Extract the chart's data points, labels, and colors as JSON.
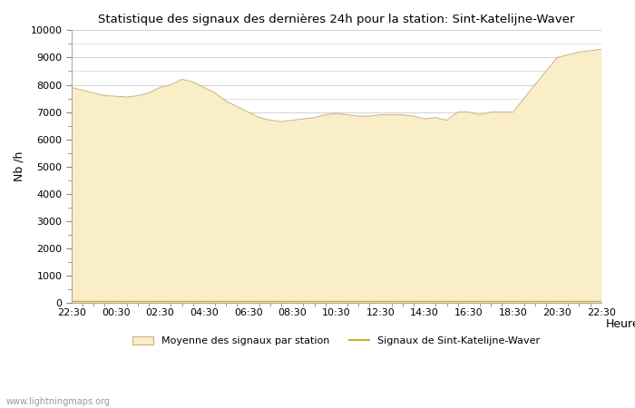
{
  "title": "Statistique des signaux des dernières 24h pour la station: Sint-Katelijne-Waver",
  "xlabel": "Heure",
  "ylabel": "Nb /h",
  "ylim": [
    0,
    10000
  ],
  "yticks": [
    0,
    1000,
    2000,
    3000,
    4000,
    5000,
    6000,
    7000,
    8000,
    9000,
    10000
  ],
  "x_labels": [
    "22:30",
    "00:30",
    "02:30",
    "04:30",
    "06:30",
    "08:30",
    "10:30",
    "12:30",
    "14:30",
    "16:30",
    "18:30",
    "20:30",
    "22:30"
  ],
  "fill_color": "#FAEEC8",
  "fill_edge_color": "#C8B080",
  "line_color": "#D4A832",
  "background_color": "#FFFFFF",
  "grid_color": "#CCCCCC",
  "watermark": "www.lightningmaps.org",
  "legend_fill_label": "Moyenne des signaux par station",
  "legend_line_label": "Signaux de Sint-Katelijne-Waver",
  "x_values": [
    0,
    1,
    2,
    3,
    4,
    5,
    6,
    7,
    8,
    9,
    10,
    11,
    12,
    13,
    14,
    15,
    16,
    17,
    18,
    19,
    20,
    21,
    22,
    23,
    24,
    25,
    26,
    27,
    28,
    29,
    30,
    31,
    32,
    33,
    34,
    35,
    36,
    37,
    38,
    39,
    40,
    41,
    42,
    43,
    44,
    45,
    46,
    47,
    48
  ],
  "avg_values": [
    7900,
    7800,
    7700,
    7600,
    7580,
    7550,
    7600,
    7700,
    7900,
    8000,
    8200,
    8100,
    7900,
    7700,
    7400,
    7200,
    7000,
    6800,
    6700,
    6650,
    6700,
    6750,
    6800,
    6900,
    6950,
    6900,
    6850,
    6850,
    6900,
    6900,
    6900,
    6850,
    6750,
    6800,
    6700,
    7000,
    7000,
    6900,
    7000,
    7000,
    7000,
    7500,
    8000,
    8500,
    9000,
    9100,
    9200,
    9250,
    9300
  ],
  "station_values": [
    80,
    80,
    80,
    80,
    80,
    80,
    80,
    80,
    80,
    80,
    80,
    80,
    80,
    80,
    80,
    80,
    80,
    80,
    80,
    80,
    80,
    80,
    80,
    80,
    80,
    80,
    80,
    80,
    80,
    80,
    80,
    80,
    80,
    80,
    80,
    80,
    80,
    80,
    80,
    80,
    80,
    80,
    80,
    80,
    80,
    80,
    80,
    80,
    80
  ]
}
